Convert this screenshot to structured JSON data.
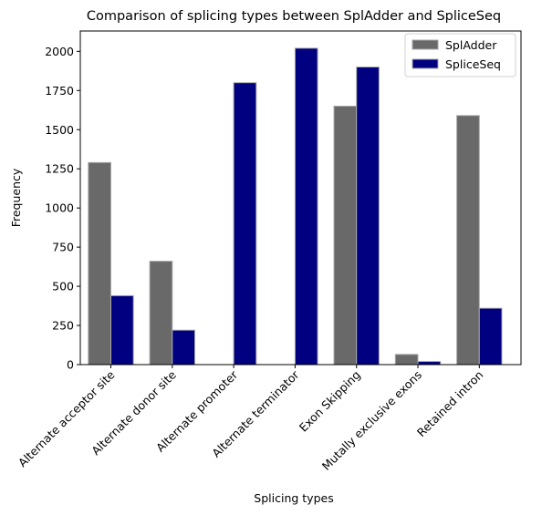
{
  "chart_data": {
    "type": "bar",
    "title": "Comparison of splicing types between SplAdder and SpliceSeq",
    "xlabel": "Splicing types",
    "ylabel": "Frequency",
    "categories": [
      "Alternate acceptor site",
      "Alternate donor site",
      "Alternate promoter",
      "Alternate terminator",
      "Exon Skipping",
      "Mutally exclusive exons",
      "Retained intron"
    ],
    "series": [
      {
        "name": "SplAdder",
        "color": "#696969",
        "values": [
          1290,
          660,
          0,
          0,
          1650,
          65,
          1590
        ]
      },
      {
        "name": "SpliceSeq",
        "color": "#000080",
        "values": [
          440,
          220,
          1800,
          2020,
          1900,
          20,
          360
        ]
      }
    ],
    "ylim": [
      0,
      2130
    ],
    "yticks": [
      0,
      250,
      500,
      750,
      1000,
      1250,
      1500,
      1750,
      2000
    ],
    "grid": false,
    "legend_position": "top-right"
  }
}
